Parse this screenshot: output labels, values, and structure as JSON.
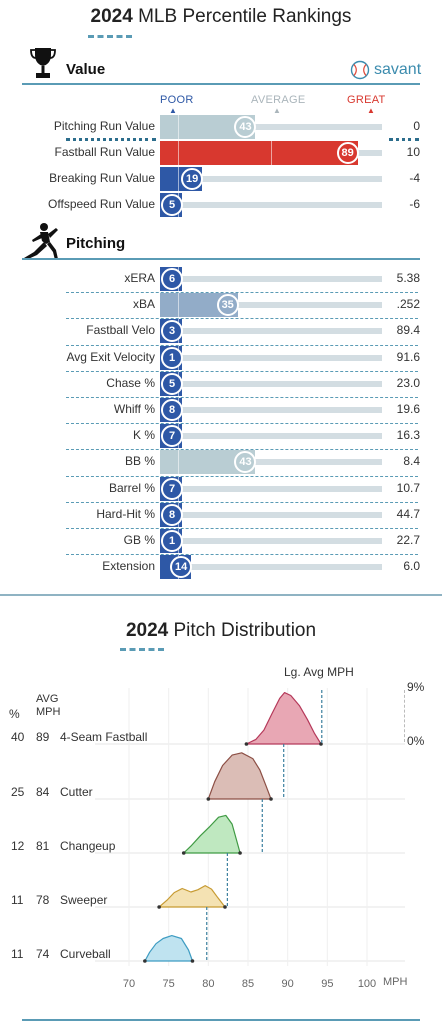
{
  "header": {
    "title_year": "2024",
    "title_rest": "MLB Percentile Rankings"
  },
  "value_section": {
    "title": "Value",
    "brand": "savant",
    "scale": {
      "poor": "POOR",
      "average": "AVERAGE",
      "great": "GREAT"
    },
    "rows": [
      {
        "label": "Pitching Run Value",
        "percentile": 43,
        "value": "0"
      },
      {
        "label": "Fastball Run Value",
        "percentile": 89,
        "value": "10"
      },
      {
        "label": "Breaking Run Value",
        "percentile": 19,
        "value": "-4"
      },
      {
        "label": "Offspeed Run Value",
        "percentile": 5,
        "value": "-6"
      }
    ]
  },
  "pitching_section": {
    "title": "Pitching",
    "rows": [
      {
        "label": "xERA",
        "percentile": 6,
        "value": "5.38"
      },
      {
        "label": "xBA",
        "percentile": 35,
        "value": ".252"
      },
      {
        "label": "Fastball Velo",
        "percentile": 3,
        "value": "89.4"
      },
      {
        "label": "Avg Exit Velocity",
        "percentile": 1,
        "value": "91.6"
      },
      {
        "label": "Chase %",
        "percentile": 5,
        "value": "23.0"
      },
      {
        "label": "Whiff %",
        "percentile": 8,
        "value": "19.6"
      },
      {
        "label": "K %",
        "percentile": 7,
        "value": "16.3"
      },
      {
        "label": "BB %",
        "percentile": 43,
        "value": "8.4"
      },
      {
        "label": "Barrel %",
        "percentile": 7,
        "value": "10.7"
      },
      {
        "label": "Hard-Hit %",
        "percentile": 8,
        "value": "44.7"
      },
      {
        "label": "GB %",
        "percentile": 1,
        "value": "22.7"
      },
      {
        "label": "Extension",
        "percentile": 14,
        "value": "6.0"
      }
    ]
  },
  "colors": {
    "poor": "#2e58a6",
    "great": "#d8382f",
    "average": "#b9cdd3",
    "accent": "#5a9bb5"
  },
  "chart_data": {
    "type": "area",
    "title_year": "2024",
    "title_rest": "Pitch Distribution",
    "league_avg_label": "Lg. Avg MPH",
    "col_pct": "%",
    "col_avg_line1": "AVG",
    "col_avg_line2": "MPH",
    "y_scale_max": "9%",
    "y_scale_min": "0%",
    "x_unit": "MPH",
    "x_ticks": [
      70,
      75,
      80,
      85,
      90,
      95,
      100
    ],
    "xlim": [
      66.5,
      102
    ],
    "pitches": [
      {
        "name": "4-Seam Fastball",
        "pct": 40,
        "avg": 89,
        "lg_avg": 94.3,
        "color": "#e8a7b4",
        "stroke": "#b5395a",
        "curve": [
          [
            84.8,
            0
          ],
          [
            86,
            0.8
          ],
          [
            87,
            2.4
          ],
          [
            88,
            5.2
          ],
          [
            89,
            7.9
          ],
          [
            89.6,
            8.9
          ],
          [
            90.4,
            8.4
          ],
          [
            91.5,
            6.6
          ],
          [
            92.5,
            4.2
          ],
          [
            93.4,
            1.8
          ],
          [
            94.2,
            0
          ]
        ]
      },
      {
        "name": "Cutter",
        "pct": 25,
        "avg": 84,
        "lg_avg": 89.5,
        "color": "#dbbdb6",
        "stroke": "#8c4f45",
        "curve": [
          [
            80,
            0
          ],
          [
            80.8,
            3.0
          ],
          [
            81.8,
            5.8
          ],
          [
            83,
            7.6
          ],
          [
            84.2,
            8.0
          ],
          [
            85.6,
            7.0
          ],
          [
            86.5,
            5.0
          ],
          [
            87.3,
            2.2
          ],
          [
            87.9,
            0
          ]
        ]
      },
      {
        "name": "Changeup",
        "pct": 12,
        "avg": 81,
        "lg_avg": 86.8,
        "color": "#bfe8c0",
        "stroke": "#3f9a43",
        "curve": [
          [
            76.9,
            0
          ],
          [
            77.8,
            1.2
          ],
          [
            79.0,
            3.0
          ],
          [
            80.2,
            4.6
          ],
          [
            81.3,
            6.2
          ],
          [
            82.2,
            6.5
          ],
          [
            83.0,
            5.0
          ],
          [
            83.6,
            2.0
          ],
          [
            84.0,
            0
          ]
        ]
      },
      {
        "name": "Sweeper",
        "pct": 11,
        "avg": 78,
        "lg_avg": 82.4,
        "color": "#f4e2b3",
        "stroke": "#c79b33",
        "curve": [
          [
            73.8,
            0
          ],
          [
            74.8,
            1.2
          ],
          [
            75.7,
            2.5
          ],
          [
            76.7,
            3.2
          ],
          [
            77.8,
            2.6
          ],
          [
            78.7,
            3.0
          ],
          [
            79.6,
            3.7
          ],
          [
            80.4,
            3.1
          ],
          [
            81.2,
            1.6
          ],
          [
            82.1,
            0
          ]
        ]
      },
      {
        "name": "Curveball",
        "pct": 11,
        "avg": 74,
        "lg_avg": 79.8,
        "color": "#bfe3f0",
        "stroke": "#3e9cc2",
        "curve": [
          [
            72.0,
            0
          ],
          [
            72.6,
            1.5
          ],
          [
            73.4,
            3.0
          ],
          [
            74.3,
            3.9
          ],
          [
            75.4,
            4.4
          ],
          [
            76.6,
            3.9
          ],
          [
            77.5,
            1.9
          ],
          [
            78.0,
            0
          ]
        ]
      }
    ]
  }
}
